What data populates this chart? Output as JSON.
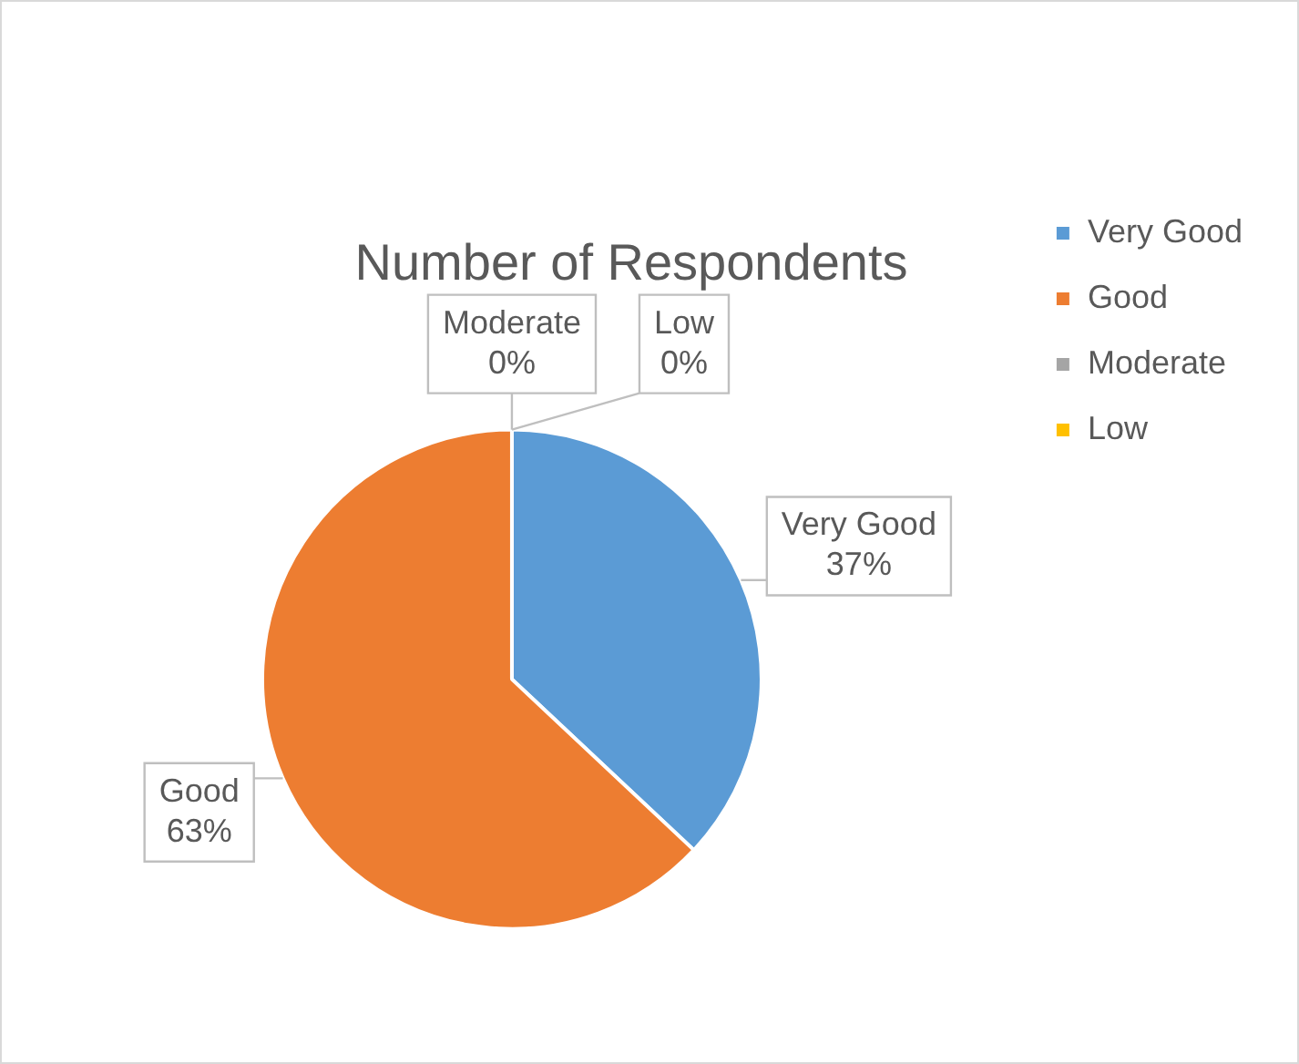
{
  "chart_data": {
    "type": "pie",
    "title": "Number of Respondents",
    "categories": [
      "Very Good",
      "Good",
      "Moderate",
      "Low"
    ],
    "values": [
      37,
      63,
      0,
      0
    ],
    "colors": [
      "#5b9bd5",
      "#ed7d31",
      "#a5a5a5",
      "#ffc000"
    ],
    "value_labels": [
      "37%",
      "63%",
      "0%",
      "0%"
    ],
    "legend": "top right"
  }
}
